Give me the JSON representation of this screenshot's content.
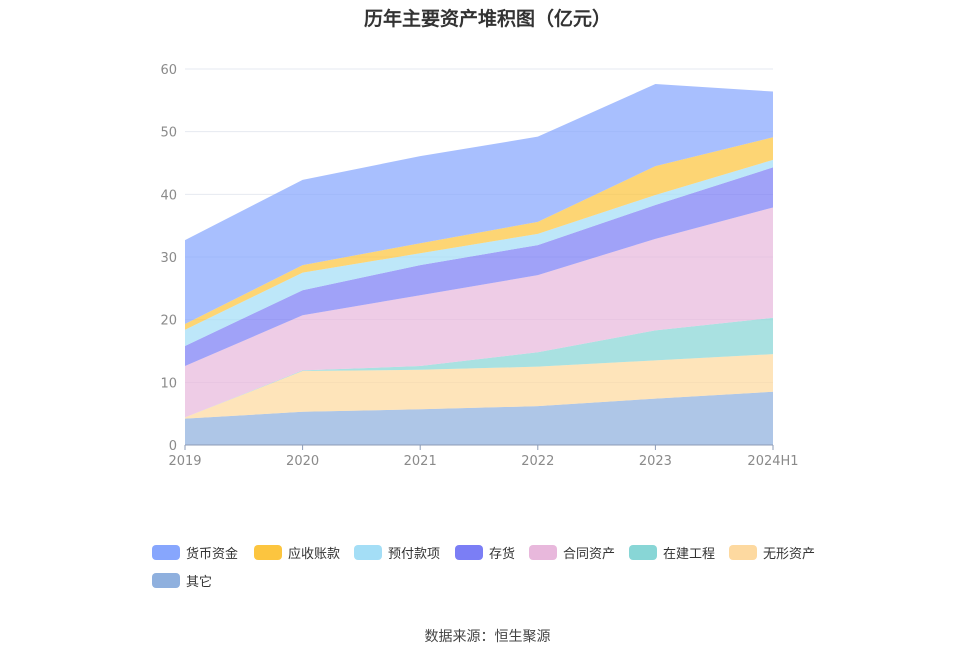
{
  "chart_data": {
    "type": "area",
    "stacked": true,
    "title": "历年主要资产堆积图（亿元）",
    "categories": [
      "2019",
      "2020",
      "2021",
      "2022",
      "2023",
      "2024H1"
    ],
    "ylim": [
      0,
      60
    ],
    "yticks": [
      0,
      10,
      20,
      30,
      40,
      50,
      60
    ],
    "grid": true,
    "legend_position": "bottom",
    "series": [
      {
        "name": "其它",
        "color": "#8fb0de",
        "values": [
          4.2,
          5.3,
          5.7,
          6.2,
          7.4,
          8.5
        ]
      },
      {
        "name": "无形资产",
        "color": "#fdd9a0",
        "values": [
          0.2,
          6.5,
          6.3,
          6.3,
          6.1,
          6.0
        ]
      },
      {
        "name": "在建工程",
        "color": "#88d6d6",
        "values": [
          0.0,
          0.1,
          0.6,
          2.3,
          4.8,
          5.8
        ]
      },
      {
        "name": "合同资产",
        "color": "#e8b8dc",
        "values": [
          8.2,
          8.8,
          11.3,
          12.3,
          14.6,
          17.6
        ]
      },
      {
        "name": "存货",
        "color": "#7b7ef5",
        "values": [
          3.2,
          4.0,
          4.8,
          4.8,
          5.4,
          6.4
        ]
      },
      {
        "name": "预付款项",
        "color": "#a4def6",
        "values": [
          2.6,
          2.8,
          1.9,
          1.8,
          1.6,
          1.2
        ]
      },
      {
        "name": "应收账款",
        "color": "#fcc53f",
        "values": [
          0.9,
          1.2,
          1.6,
          1.9,
          4.6,
          3.6
        ]
      },
      {
        "name": "货币资金",
        "color": "#87a6fd",
        "values": [
          13.4,
          13.6,
          13.9,
          13.6,
          13.1,
          7.3
        ]
      }
    ],
    "legend_order": [
      "货币资金",
      "应收账款",
      "预付款项",
      "存货",
      "合同资产",
      "在建工程",
      "无形资产",
      "其它"
    ]
  },
  "footer": {
    "source": "数据来源：恒生聚源"
  }
}
